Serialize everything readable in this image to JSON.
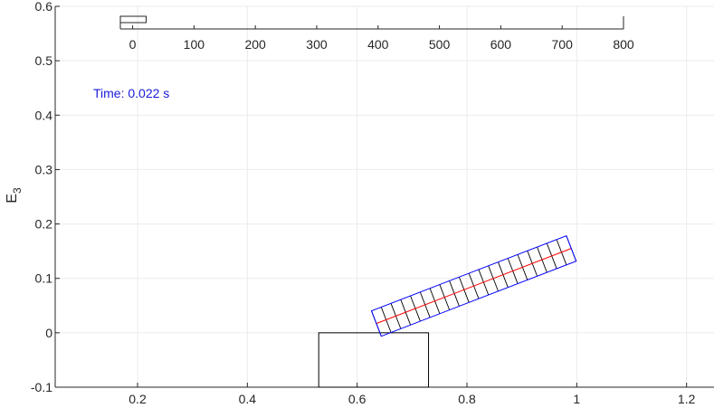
{
  "chart_data": {
    "type": "line",
    "title": "",
    "xlabel": "",
    "ylabel": "E",
    "ylabel_subscript": "3",
    "xlim": [
      0.05,
      1.25
    ],
    "ylim": [
      -0.1,
      0.6
    ],
    "grid": true,
    "xticks": [
      0.2,
      0.4,
      0.6,
      0.8,
      1.0,
      1.2
    ],
    "xtick_labels": [
      "0.2",
      "0.4",
      "0.6",
      "0.8",
      "1",
      "1.2"
    ],
    "yticks": [
      -0.1,
      0,
      0.1,
      0.2,
      0.3,
      0.4,
      0.5,
      0.6
    ],
    "ytick_labels": [
      "-0.1",
      "0",
      "0.1",
      "0.2",
      "0.3",
      "0.4",
      "0.5",
      "0.6"
    ],
    "annotation": "Time: 0.022 s",
    "support_rect": {
      "x": [
        0.53,
        0.73
      ],
      "y": [
        -0.1,
        0.0
      ]
    },
    "beam": {
      "start": [
        0.635,
        0.017
      ],
      "end": [
        0.99,
        0.155
      ],
      "half_width": 0.025,
      "segments": 20,
      "color_outline": "#0000ff",
      "color_centerline": "#ff0000",
      "color_dividers": "#000000"
    },
    "inset": {
      "xlim": [
        -20,
        800
      ],
      "xticks": [
        0,
        100,
        200,
        300,
        400,
        500,
        600,
        700,
        800
      ],
      "xtick_labels": [
        "0",
        "100",
        "200",
        "300",
        "400",
        "500",
        "600",
        "700",
        "800"
      ],
      "marker_value": 22
    }
  }
}
